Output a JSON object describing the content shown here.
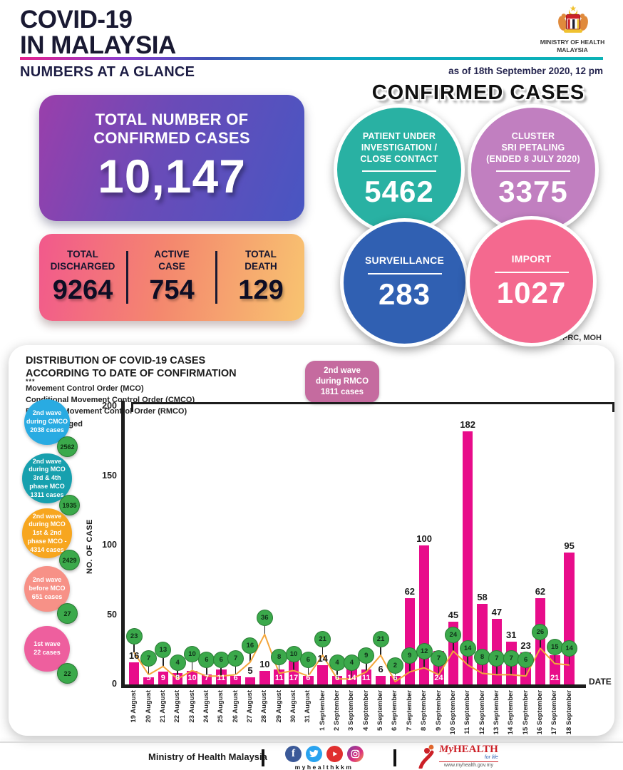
{
  "header": {
    "title": "COVID-19\nIN MALAYSIA",
    "subtitle": "NUMBERS AT A GLANCE",
    "ministry": "MINISTRY OF HEALTH\nMALAYSIA",
    "as_of": "as of 18th September 2020, 12 pm"
  },
  "totals": {
    "confirmed_label": "TOTAL NUMBER OF\nCONFIRMED CASES",
    "confirmed_value": "10,147",
    "discharged_label": "TOTAL\nDISCHARGED",
    "discharged_value": "9264",
    "active_label": "ACTIVE\nCASE",
    "active_value": "754",
    "death_label": "TOTAL\nDEATH",
    "death_value": "129"
  },
  "confirmed_cases": {
    "title": "CONFIRMED CASES",
    "circles": [
      {
        "label": "PATIENT UNDER\nINVESTIGATION /\nCLOSE CONTACT",
        "value": "5462",
        "color": "#29b1a3"
      },
      {
        "label": "CLUSTER\nSRI PETALING\n(ENDED 8 JULY 2020)",
        "value": "3375",
        "color": "#c17fc0"
      },
      {
        "label": "SURVEILLANCE",
        "value": "283",
        "color": "#3060b2"
      },
      {
        "label": "IMPORT",
        "value": "1027",
        "color": "#f4698f"
      }
    ]
  },
  "source_note": "Source: CPRC, MOH",
  "chart_data": {
    "type": "bar",
    "title": "DISTRIBUTION OF COVID-19 CASES\nACCORDING TO DATE OF CONFIRMATION",
    "footnote_marker": "***",
    "footnotes": "Movement Control Order (MCO)\nConditional Movement Control Order (CMCO)\nRecovery Movement Control Order (RMCO)",
    "discharged_legend": "Discharged",
    "xlabel": "DATE",
    "ylabel": "NO. OF CASE",
    "ylim": [
      0,
      200
    ],
    "yticks": [
      0,
      50,
      100,
      150,
      200
    ],
    "grid": false,
    "bar_color": "#e80c8a",
    "discharged_color": "#3ba94b",
    "line_color": "#f4a63b",
    "categories": [
      "19 August",
      "20 August",
      "21 August",
      "22 August",
      "23 August",
      "24 August",
      "25 August",
      "26 August",
      "27 August",
      "28 August",
      "29 August",
      "30 August",
      "31 August",
      "1 September",
      "2 September",
      "3 September",
      "4 September",
      "5 September",
      "6 September",
      "7 September",
      "8 September",
      "9 September",
      "10 September",
      "11 September",
      "12 September",
      "13 September",
      "14 September",
      "15 September",
      "16 September",
      "17 September",
      "18 September"
    ],
    "series": [
      {
        "name": "Confirmed cases",
        "values": [
          16,
          5,
          9,
          8,
          10,
          7,
          11,
          6,
          5,
          10,
          11,
          17,
          6,
          14,
          6,
          14,
          11,
          6,
          6,
          62,
          100,
          24,
          45,
          182,
          58,
          47,
          31,
          23,
          62,
          21,
          95
        ]
      },
      {
        "name": "Discharged",
        "values": [
          23,
          7,
          13,
          4,
          10,
          6,
          6,
          7,
          16,
          36,
          8,
          10,
          6,
          21,
          4,
          4,
          9,
          21,
          2,
          9,
          12,
          7,
          24,
          14,
          8,
          7,
          7,
          6,
          26,
          15,
          14
        ]
      }
    ],
    "label_above": [
      1,
      0,
      0,
      0,
      0,
      0,
      0,
      0,
      1,
      1,
      0,
      0,
      0,
      1,
      0,
      0,
      0,
      1,
      0,
      1,
      1,
      0,
      1,
      1,
      1,
      1,
      1,
      1,
      1,
      0,
      1
    ],
    "rmco_annotation": "2nd wave\nduring RMCO\n1811 cases",
    "wave_circles": [
      {
        "label": "2nd wave\nduring CMCO\n2038 cases",
        "badge": "2562",
        "color": "#29abe2"
      },
      {
        "label": "2nd wave\nduring MCO\n3rd & 4th\nphase MCO\n1311 cases",
        "badge": "1935",
        "color": "#17a0ae"
      },
      {
        "label": "2nd wave\nduring MCO\n1st & 2nd\nphase MCO -\n4314 cases",
        "badge": "2429",
        "color": "#f7a61f"
      },
      {
        "label": "2nd wave\nbefore MCO\n651 cases",
        "badge": "27",
        "color": "#f79187"
      },
      {
        "label": "1st wave\n22 cases",
        "badge": "22",
        "color": "#ee5f9e"
      }
    ]
  },
  "footer": {
    "ministry": "Ministry of Health Malaysia",
    "social_handle": "myhealthkkm",
    "myhealth_brand_my": "My",
    "myhealth_brand_health": "HEALTH",
    "myhealth_tagline": "for life",
    "myhealth_url": "www.myhealth.gov.my"
  }
}
